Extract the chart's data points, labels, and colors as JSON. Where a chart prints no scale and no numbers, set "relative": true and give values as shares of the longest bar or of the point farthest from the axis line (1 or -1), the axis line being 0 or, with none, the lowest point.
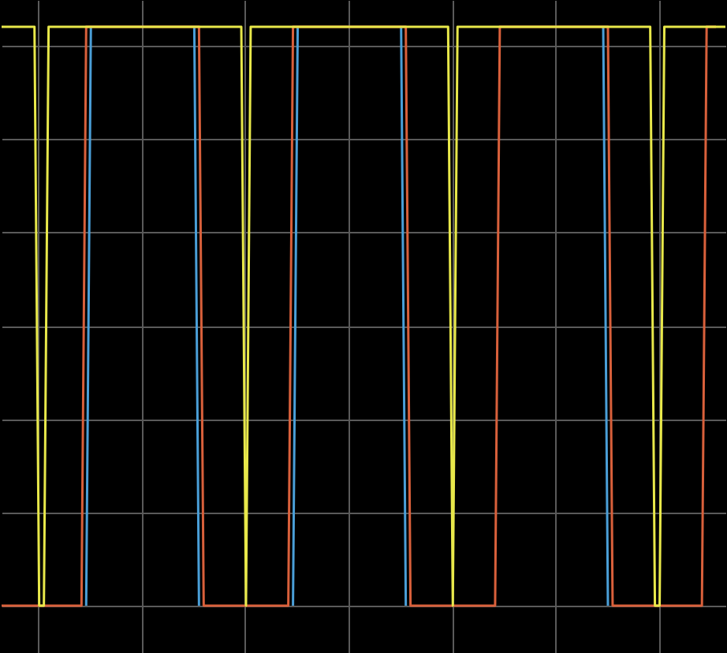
{
  "chart_data": {
    "type": "line",
    "relative": true,
    "grid": true,
    "tick_labels": false,
    "legend": false,
    "marker": "none",
    "line_style": "solid",
    "categories": [
      null,
      null,
      null,
      null,
      null,
      null,
      null,
      null,
      null,
      null,
      null,
      null,
      null,
      null,
      null,
      null,
      null,
      null,
      null,
      null,
      null,
      null,
      null,
      null,
      null,
      null,
      null,
      null,
      null,
      null,
      null,
      null,
      null,
      null,
      null,
      null,
      null,
      null,
      null,
      null,
      null,
      null,
      null,
      null,
      null,
      null,
      null,
      null,
      null,
      null,
      null,
      null,
      null,
      null,
      null,
      null,
      null,
      null,
      null,
      null,
      null,
      null,
      null,
      null,
      null,
      null,
      null,
      null,
      null,
      null,
      null,
      null,
      null,
      null,
      null,
      null,
      null,
      null,
      null,
      null,
      null,
      null,
      null,
      null,
      null,
      null,
      null,
      null,
      null,
      null,
      null,
      null,
      null,
      null,
      null,
      null,
      null,
      null,
      null,
      null,
      null,
      null,
      null,
      null,
      null,
      null,
      null,
      null,
      null,
      null,
      null,
      null,
      null,
      null,
      null,
      null,
      null,
      null,
      null,
      null,
      null,
      null,
      null,
      null,
      null,
      null,
      null,
      null,
      null,
      null,
      null,
      null,
      null,
      null,
      null,
      null,
      null,
      null,
      null,
      null,
      null,
      null,
      null,
      null,
      null,
      null,
      null,
      null,
      null,
      null,
      null,
      null,
      null,
      null,
      null
    ],
    "series": [
      {
        "color": "#4a9fd8",
        "values": [
          null,
          null,
          null,
          null,
          null,
          null,
          null,
          null,
          null,
          null,
          null,
          null,
          null,
          null,
          null,
          null,
          null,
          null,
          0,
          1,
          null,
          null,
          null,
          null,
          null,
          null,
          null,
          null,
          null,
          null,
          null,
          null,
          null,
          null,
          null,
          null,
          null,
          null,
          null,
          null,
          null,
          1,
          0,
          null,
          null,
          null,
          null,
          null,
          null,
          null,
          null,
          null,
          null,
          null,
          null,
          null,
          null,
          null,
          null,
          null,
          null,
          null,
          0,
          1,
          null,
          null,
          null,
          null,
          null,
          null,
          null,
          null,
          null,
          null,
          null,
          null,
          null,
          null,
          null,
          null,
          null,
          null,
          null,
          null,
          null,
          1,
          0,
          null,
          null,
          null,
          null,
          null,
          null,
          null,
          null,
          null,
          null,
          null,
          null,
          null,
          null,
          null,
          null,
          null,
          null,
          null,
          null,
          null,
          null,
          null,
          null,
          null,
          null,
          null,
          null,
          null,
          null,
          null,
          null,
          null,
          null,
          null,
          null,
          null,
          null,
          null,
          null,
          null,
          1,
          0,
          null,
          null,
          null,
          null,
          null,
          null,
          null,
          null,
          null,
          null,
          null,
          null,
          null,
          null,
          null,
          null,
          null,
          null,
          null,
          null,
          null,
          null,
          null,
          null,
          null
        ]
      },
      {
        "color": "#d9603b",
        "values": [
          0,
          0,
          0,
          0,
          0,
          0,
          0,
          0,
          0,
          0,
          0,
          0,
          0,
          0,
          0,
          0,
          0,
          0,
          1,
          1,
          1,
          1,
          1,
          1,
          1,
          1,
          1,
          1,
          1,
          1,
          1,
          1,
          1,
          1,
          1,
          1,
          1,
          1,
          1,
          1,
          1,
          1,
          1,
          0,
          0,
          0,
          0,
          0,
          0,
          0,
          0,
          0,
          0,
          0,
          0,
          0,
          0,
          0,
          0,
          0,
          0,
          0,
          1,
          1,
          1,
          1,
          1,
          1,
          1,
          1,
          1,
          1,
          1,
          1,
          1,
          1,
          1,
          1,
          1,
          1,
          1,
          1,
          1,
          1,
          1,
          1,
          1,
          0,
          0,
          0,
          0,
          0,
          0,
          0,
          0,
          0,
          0,
          0,
          0,
          0,
          0,
          0,
          0,
          0,
          0,
          0,
          1,
          1,
          1,
          1,
          1,
          1,
          1,
          1,
          1,
          1,
          1,
          1,
          1,
          1,
          1,
          1,
          1,
          1,
          1,
          1,
          1,
          1,
          1,
          1,
          0,
          0,
          0,
          0,
          0,
          0,
          0,
          0,
          0,
          0,
          0,
          0,
          0,
          0,
          0,
          0,
          0,
          0,
          0,
          0,
          1,
          1,
          1,
          null,
          null
        ]
      },
      {
        "color": "#e8e84a",
        "values": [
          1,
          1,
          1,
          1,
          1,
          1,
          1,
          1,
          0,
          0,
          1,
          1,
          1,
          1,
          1,
          1,
          1,
          1,
          1,
          1,
          1,
          1,
          1,
          1,
          1,
          1,
          1,
          1,
          1,
          1,
          1,
          1,
          1,
          1,
          1,
          1,
          1,
          1,
          1,
          1,
          1,
          1,
          1,
          1,
          1,
          1,
          1,
          1,
          1,
          1,
          1,
          1,
          0,
          1,
          1,
          1,
          1,
          1,
          1,
          1,
          1,
          1,
          1,
          1,
          1,
          1,
          1,
          1,
          1,
          1,
          1,
          1,
          1,
          1,
          1,
          1,
          1,
          1,
          1,
          1,
          1,
          1,
          1,
          1,
          1,
          1,
          1,
          1,
          1,
          1,
          1,
          1,
          1,
          1,
          1,
          1,
          0,
          1,
          1,
          1,
          1,
          1,
          1,
          1,
          1,
          1,
          1,
          1,
          1,
          1,
          1,
          1,
          1,
          1,
          1,
          1,
          1,
          1,
          1,
          1,
          1,
          1,
          1,
          1,
          1,
          1,
          1,
          1,
          1,
          1,
          1,
          1,
          1,
          1,
          1,
          1,
          1,
          1,
          1,
          0,
          0,
          1,
          1,
          1,
          1,
          1,
          1,
          1,
          1,
          1,
          1,
          1,
          1,
          1,
          1
        ]
      }
    ]
  }
}
